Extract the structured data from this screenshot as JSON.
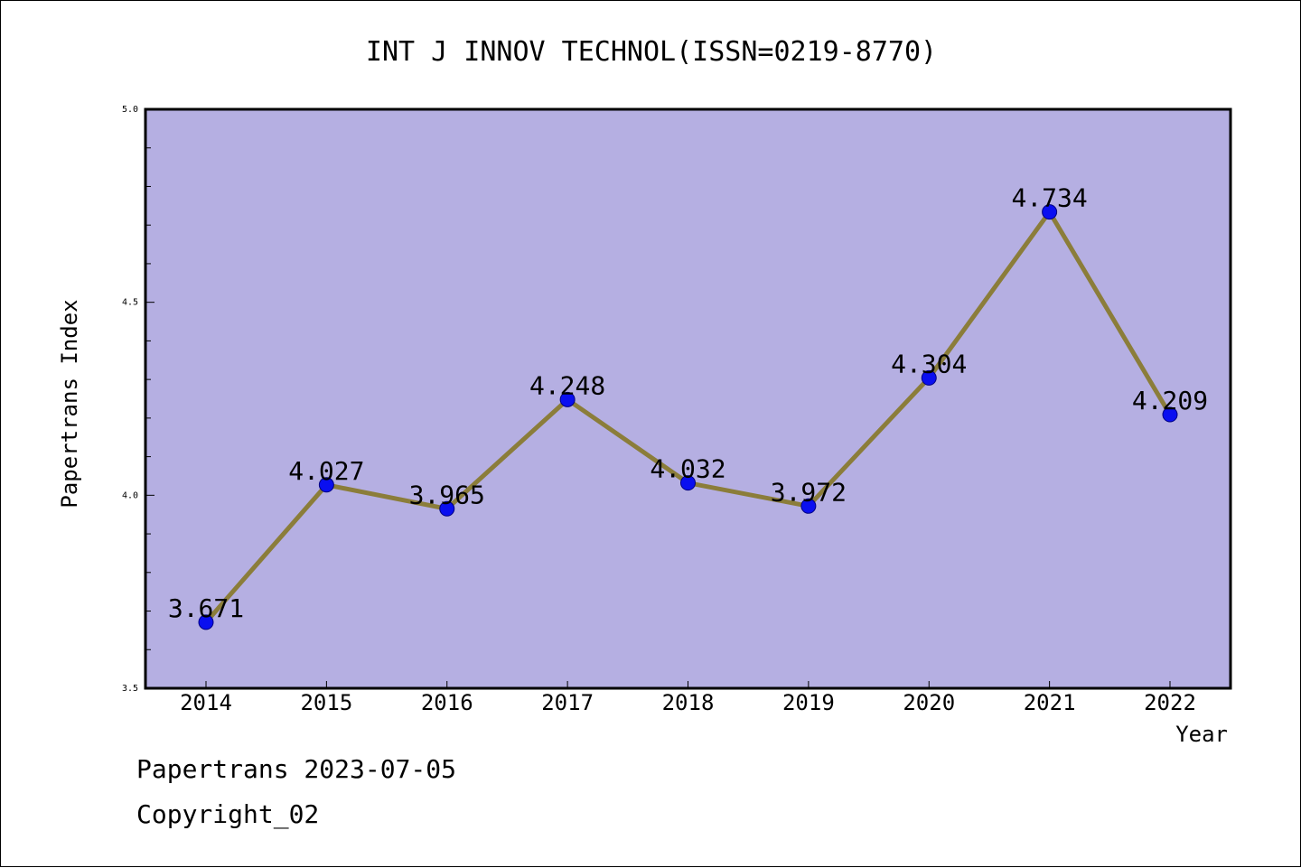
{
  "chart_data": {
    "type": "line",
    "title": "INT J INNOV TECHNOL(ISSN=0219-8770)",
    "xlabel": "Year",
    "ylabel": "Papertrans Index",
    "categories": [
      "2014",
      "2015",
      "2016",
      "2017",
      "2018",
      "2019",
      "2020",
      "2021",
      "2022"
    ],
    "series": [
      {
        "values": [
          3.671,
          4.027,
          3.965,
          4.248,
          4.032,
          3.972,
          4.304,
          4.734,
          4.209
        ],
        "labels": [
          "3.671",
          "4.027",
          "3.965",
          "4.248",
          "4.032",
          "3.972",
          "4.304",
          "4.734",
          "4.209"
        ]
      }
    ],
    "ylim": [
      3.5,
      5.0
    ],
    "yticks": [
      "3.5",
      "4.0",
      "4.5",
      "5.0"
    ],
    "grid": false,
    "colors": {
      "plot_background": "#b5afe2",
      "line": "#8b7d3a",
      "marker": "#0a0ff0"
    }
  },
  "footer": {
    "line1": "Papertrans 2023-07-05",
    "line2": "Copyright_02"
  }
}
